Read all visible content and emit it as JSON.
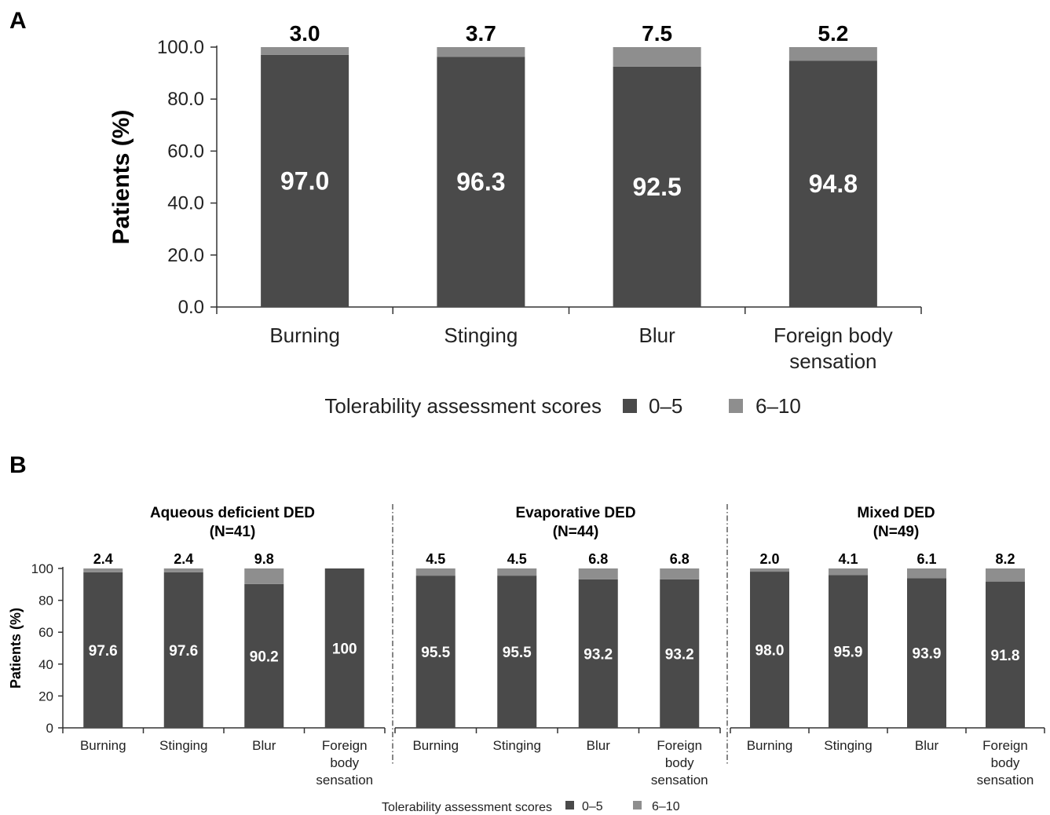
{
  "chart_data": [
    {
      "panel": "A",
      "type": "bar",
      "stacked": true,
      "ylabel": "Patients (%)",
      "ylim": [
        0,
        100
      ],
      "yticks": [
        "0.0",
        "20.0",
        "40.0",
        "60.0",
        "80.0",
        "100.0"
      ],
      "categories": [
        [
          "Burning"
        ],
        [
          "Stinging"
        ],
        [
          "Blur"
        ],
        [
          "Foreign body",
          "sensation"
        ]
      ],
      "series": [
        {
          "name": "0–5",
          "values": [
            97.0,
            96.3,
            92.5,
            94.8
          ],
          "labels": [
            "97.0",
            "96.3",
            "92.5",
            "94.8"
          ]
        },
        {
          "name": "6–10",
          "values": [
            3.0,
            3.7,
            7.5,
            5.2
          ],
          "labels": [
            "3.0",
            "3.7",
            "7.5",
            "5.2"
          ]
        }
      ],
      "legend_title": "Tolerability assessment scores",
      "legend_position": "bottom",
      "colors": {
        "0–5": "#4a4a4a",
        "6–10": "#8e8e8e"
      }
    },
    {
      "panel": "B",
      "type": "bar",
      "stacked": true,
      "ylabel": "Patients (%)",
      "ylim": [
        0,
        100
      ],
      "yticks": [
        "0",
        "20",
        "40",
        "60",
        "80",
        "100"
      ],
      "legend_title": "Tolerability assessment scores",
      "legend_position": "bottom",
      "colors": {
        "0–5": "#4a4a4a",
        "6–10": "#8e8e8e"
      },
      "groups": [
        {
          "title": "Aqueous deficient DED",
          "subtitle": "(N=41)",
          "categories": [
            [
              "Burning"
            ],
            [
              "Stinging"
            ],
            [
              "Blur"
            ],
            [
              "Foreign",
              "body",
              "sensation"
            ]
          ],
          "series": [
            {
              "name": "0–5",
              "values": [
                97.6,
                97.6,
                90.2,
                100
              ],
              "labels": [
                "97.6",
                "97.6",
                "90.2",
                "100"
              ]
            },
            {
              "name": "6–10",
              "values": [
                2.4,
                2.4,
                9.8,
                0
              ],
              "labels": [
                "2.4",
                "2.4",
                "9.8",
                ""
              ]
            }
          ]
        },
        {
          "title": "Evaporative DED",
          "subtitle": "(N=44)",
          "categories": [
            [
              "Burning"
            ],
            [
              "Stinging"
            ],
            [
              "Blur"
            ],
            [
              "Foreign",
              "body",
              "sensation"
            ]
          ],
          "series": [
            {
              "name": "0–5",
              "values": [
                95.5,
                95.5,
                93.2,
                93.2
              ],
              "labels": [
                "95.5",
                "95.5",
                "93.2",
                "93.2"
              ]
            },
            {
              "name": "6–10",
              "values": [
                4.5,
                4.5,
                6.8,
                6.8
              ],
              "labels": [
                "4.5",
                "4.5",
                "6.8",
                "6.8"
              ]
            }
          ]
        },
        {
          "title": "Mixed DED",
          "subtitle": "(N=49)",
          "categories": [
            [
              "Burning"
            ],
            [
              "Stinging"
            ],
            [
              "Blur"
            ],
            [
              "Foreign",
              "body",
              "sensation"
            ]
          ],
          "series": [
            {
              "name": "0–5",
              "values": [
                98.0,
                95.9,
                93.9,
                91.8
              ],
              "labels": [
                "98.0",
                "95.9",
                "93.9",
                "91.8"
              ]
            },
            {
              "name": "6–10",
              "values": [
                2.0,
                4.1,
                6.1,
                8.2
              ],
              "labels": [
                "2.0",
                "4.1",
                "6.1",
                "8.2"
              ]
            }
          ]
        }
      ]
    }
  ]
}
